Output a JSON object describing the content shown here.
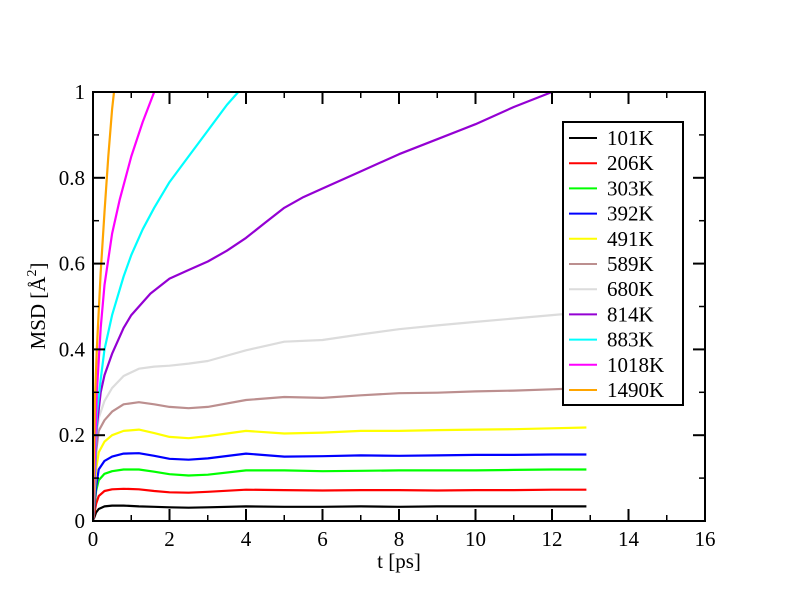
{
  "chart_data": {
    "type": "line",
    "xlabel": "t [ps]",
    "ylabel_prefix": "MSD [",
    "ylabel_unit": "Å",
    "ylabel_sup": "2",
    "ylabel_suffix": "]",
    "xlim": [
      0,
      16
    ],
    "ylim": [
      0,
      1
    ],
    "xticks": [
      "0",
      "2",
      "4",
      "6",
      "8",
      "10",
      "12",
      "14",
      "16"
    ],
    "yticks": [
      "0",
      "0.2",
      "0.4",
      "0.6",
      "0.8",
      "1"
    ],
    "grid": false,
    "legend_position": "top-right",
    "series": [
      {
        "name": "101K",
        "color": "#000000",
        "x": [
          0,
          0.08,
          0.15,
          0.3,
          0.5,
          0.8,
          1.2,
          1.6,
          2,
          2.5,
          3,
          4,
          5,
          6,
          7,
          8,
          9,
          10,
          11,
          12,
          12.9
        ],
        "y": [
          0,
          0.02,
          0.028,
          0.034,
          0.036,
          0.036,
          0.034,
          0.033,
          0.032,
          0.031,
          0.032,
          0.034,
          0.033,
          0.033,
          0.034,
          0.033,
          0.034,
          0.034,
          0.034,
          0.034,
          0.034
        ]
      },
      {
        "name": "206K",
        "color": "#ff0000",
        "x": [
          0,
          0.08,
          0.15,
          0.3,
          0.5,
          0.8,
          1.2,
          1.6,
          2,
          2.5,
          3,
          4,
          5,
          6,
          7,
          8,
          9,
          10,
          11,
          12,
          12.9
        ],
        "y": [
          0,
          0.04,
          0.058,
          0.07,
          0.074,
          0.075,
          0.074,
          0.07,
          0.067,
          0.066,
          0.068,
          0.073,
          0.072,
          0.071,
          0.072,
          0.072,
          0.071,
          0.072,
          0.072,
          0.073,
          0.073
        ]
      },
      {
        "name": "303K",
        "color": "#00ff00",
        "x": [
          0,
          0.08,
          0.15,
          0.3,
          0.5,
          0.8,
          1.2,
          1.6,
          2,
          2.5,
          3,
          4,
          5,
          6,
          7,
          8,
          9,
          10,
          11,
          12,
          12.9
        ],
        "y": [
          0,
          0.07,
          0.095,
          0.11,
          0.116,
          0.12,
          0.12,
          0.115,
          0.109,
          0.106,
          0.108,
          0.118,
          0.118,
          0.116,
          0.117,
          0.118,
          0.118,
          0.118,
          0.119,
          0.12,
          0.12
        ]
      },
      {
        "name": "392K",
        "color": "#0000ff",
        "x": [
          0,
          0.08,
          0.15,
          0.3,
          0.5,
          0.8,
          1.2,
          1.6,
          2,
          2.5,
          3,
          4,
          5,
          6,
          7,
          8,
          9,
          10,
          11,
          12,
          12.9
        ],
        "y": [
          0,
          0.08,
          0.12,
          0.14,
          0.15,
          0.157,
          0.158,
          0.152,
          0.145,
          0.143,
          0.146,
          0.157,
          0.15,
          0.151,
          0.153,
          0.152,
          0.153,
          0.154,
          0.154,
          0.155,
          0.155
        ]
      },
      {
        "name": "491K",
        "color": "#ffff00",
        "x": [
          0,
          0.08,
          0.15,
          0.3,
          0.5,
          0.8,
          1.2,
          1.6,
          2,
          2.5,
          3,
          4,
          5,
          6,
          7,
          8,
          9,
          10,
          11,
          12,
          12.9
        ],
        "y": [
          0,
          0.12,
          0.16,
          0.185,
          0.2,
          0.21,
          0.213,
          0.205,
          0.196,
          0.193,
          0.198,
          0.21,
          0.204,
          0.206,
          0.21,
          0.21,
          0.212,
          0.213,
          0.214,
          0.216,
          0.218
        ]
      },
      {
        "name": "589K",
        "color": "#bc8f8f",
        "x": [
          0,
          0.08,
          0.15,
          0.3,
          0.5,
          0.8,
          1.2,
          1.6,
          2,
          2.5,
          3,
          4,
          5,
          6,
          7,
          8,
          9,
          10,
          11,
          12,
          12.9
        ],
        "y": [
          0,
          0.16,
          0.21,
          0.235,
          0.255,
          0.272,
          0.277,
          0.272,
          0.266,
          0.263,
          0.266,
          0.282,
          0.289,
          0.287,
          0.293,
          0.298,
          0.299,
          0.302,
          0.304,
          0.307,
          0.31
        ]
      },
      {
        "name": "680K",
        "color": "#dcdcdc",
        "x": [
          0,
          0.08,
          0.15,
          0.3,
          0.5,
          0.8,
          1.2,
          1.6,
          2,
          2.5,
          3,
          4,
          5,
          6,
          7,
          8,
          9,
          10,
          11,
          12,
          12.9
        ],
        "y": [
          0,
          0.19,
          0.24,
          0.28,
          0.31,
          0.338,
          0.355,
          0.36,
          0.362,
          0.367,
          0.373,
          0.398,
          0.418,
          0.422,
          0.435,
          0.447,
          0.456,
          0.464,
          0.472,
          0.48,
          0.487
        ]
      },
      {
        "name": "814K",
        "color": "#9400d3",
        "x": [
          0,
          0.1,
          0.2,
          0.3,
          0.5,
          0.8,
          1,
          1.5,
          2,
          2.5,
          3,
          3.5,
          4,
          4.5,
          5,
          5.5,
          6,
          7,
          8,
          9,
          10,
          11,
          12
        ],
        "y": [
          0,
          0.22,
          0.3,
          0.34,
          0.39,
          0.45,
          0.48,
          0.53,
          0.565,
          0.585,
          0.605,
          0.63,
          0.66,
          0.695,
          0.73,
          0.755,
          0.775,
          0.815,
          0.855,
          0.89,
          0.925,
          0.965,
          1.0
        ]
      },
      {
        "name": "883K",
        "color": "#00ffff",
        "x": [
          0,
          0.1,
          0.2,
          0.3,
          0.5,
          0.8,
          1,
          1.3,
          1.6,
          2,
          2.5,
          3,
          3.5,
          3.8
        ],
        "y": [
          0,
          0.25,
          0.33,
          0.4,
          0.48,
          0.57,
          0.62,
          0.68,
          0.73,
          0.79,
          0.85,
          0.91,
          0.97,
          1.0
        ]
      },
      {
        "name": "1018K",
        "color": "#ff00ff",
        "x": [
          0,
          0.1,
          0.2,
          0.3,
          0.5,
          0.7,
          1,
          1.3,
          1.6
        ],
        "y": [
          0,
          0.3,
          0.45,
          0.55,
          0.67,
          0.75,
          0.85,
          0.93,
          1.0
        ]
      },
      {
        "name": "1490K",
        "color": "#ffa500",
        "x": [
          0,
          0.05,
          0.1,
          0.2,
          0.3,
          0.4,
          0.5,
          0.55
        ],
        "y": [
          0,
          0.28,
          0.4,
          0.58,
          0.72,
          0.85,
          0.96,
          1.0
        ]
      }
    ]
  }
}
